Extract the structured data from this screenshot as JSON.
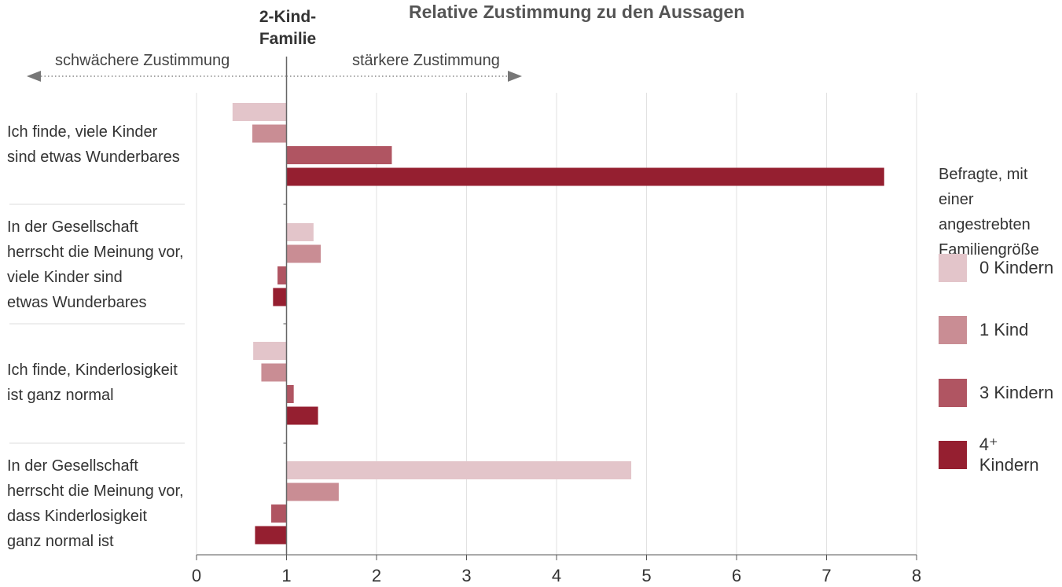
{
  "chart_data": {
    "type": "bar",
    "orientation": "horizontal",
    "title": "Relative Zustimmung zu den Aussagen",
    "reference_line": {
      "value": 1,
      "label": "2-Kind-\nFamilie"
    },
    "direction_labels": {
      "left": "schwächere Zustimmung",
      "right": "stärkere Zustimmung"
    },
    "categories": [
      "Ich finde, viele Kinder\nsind etwas Wunderbares",
      "In der Gesellschaft\nherrscht die Meinung vor,\nviele Kinder sind\netwas Wunderbares",
      "Ich finde, Kinderlosigkeit\nist ganz normal",
      "In der Gesellschaft\nherrscht die Meinung vor,\ndass Kinderlosigkeit\nganz normal ist"
    ],
    "legend_title": "Befragte, mit einer\nangestrebten\nFamiliengröße von",
    "legend_placement": "right",
    "series": [
      {
        "name": "0 Kindern",
        "color": "#e3c5ca",
        "values": [
          0.4,
          1.3,
          0.63,
          4.83
        ]
      },
      {
        "name": "1 Kind",
        "color": "#c98d94",
        "values": [
          0.62,
          1.38,
          0.72,
          1.58
        ]
      },
      {
        "name": "3 Kindern",
        "color": "#b05562",
        "values": [
          2.17,
          0.9,
          1.08,
          0.83
        ]
      },
      {
        "name": "4⁺ Kindern",
        "color": "#951f30",
        "values": [
          7.64,
          0.85,
          1.35,
          0.65
        ]
      }
    ],
    "xlim": [
      0,
      8
    ],
    "xticks": [
      0,
      1,
      2,
      3,
      4,
      5,
      6,
      7,
      8
    ],
    "grid": "vertical"
  }
}
